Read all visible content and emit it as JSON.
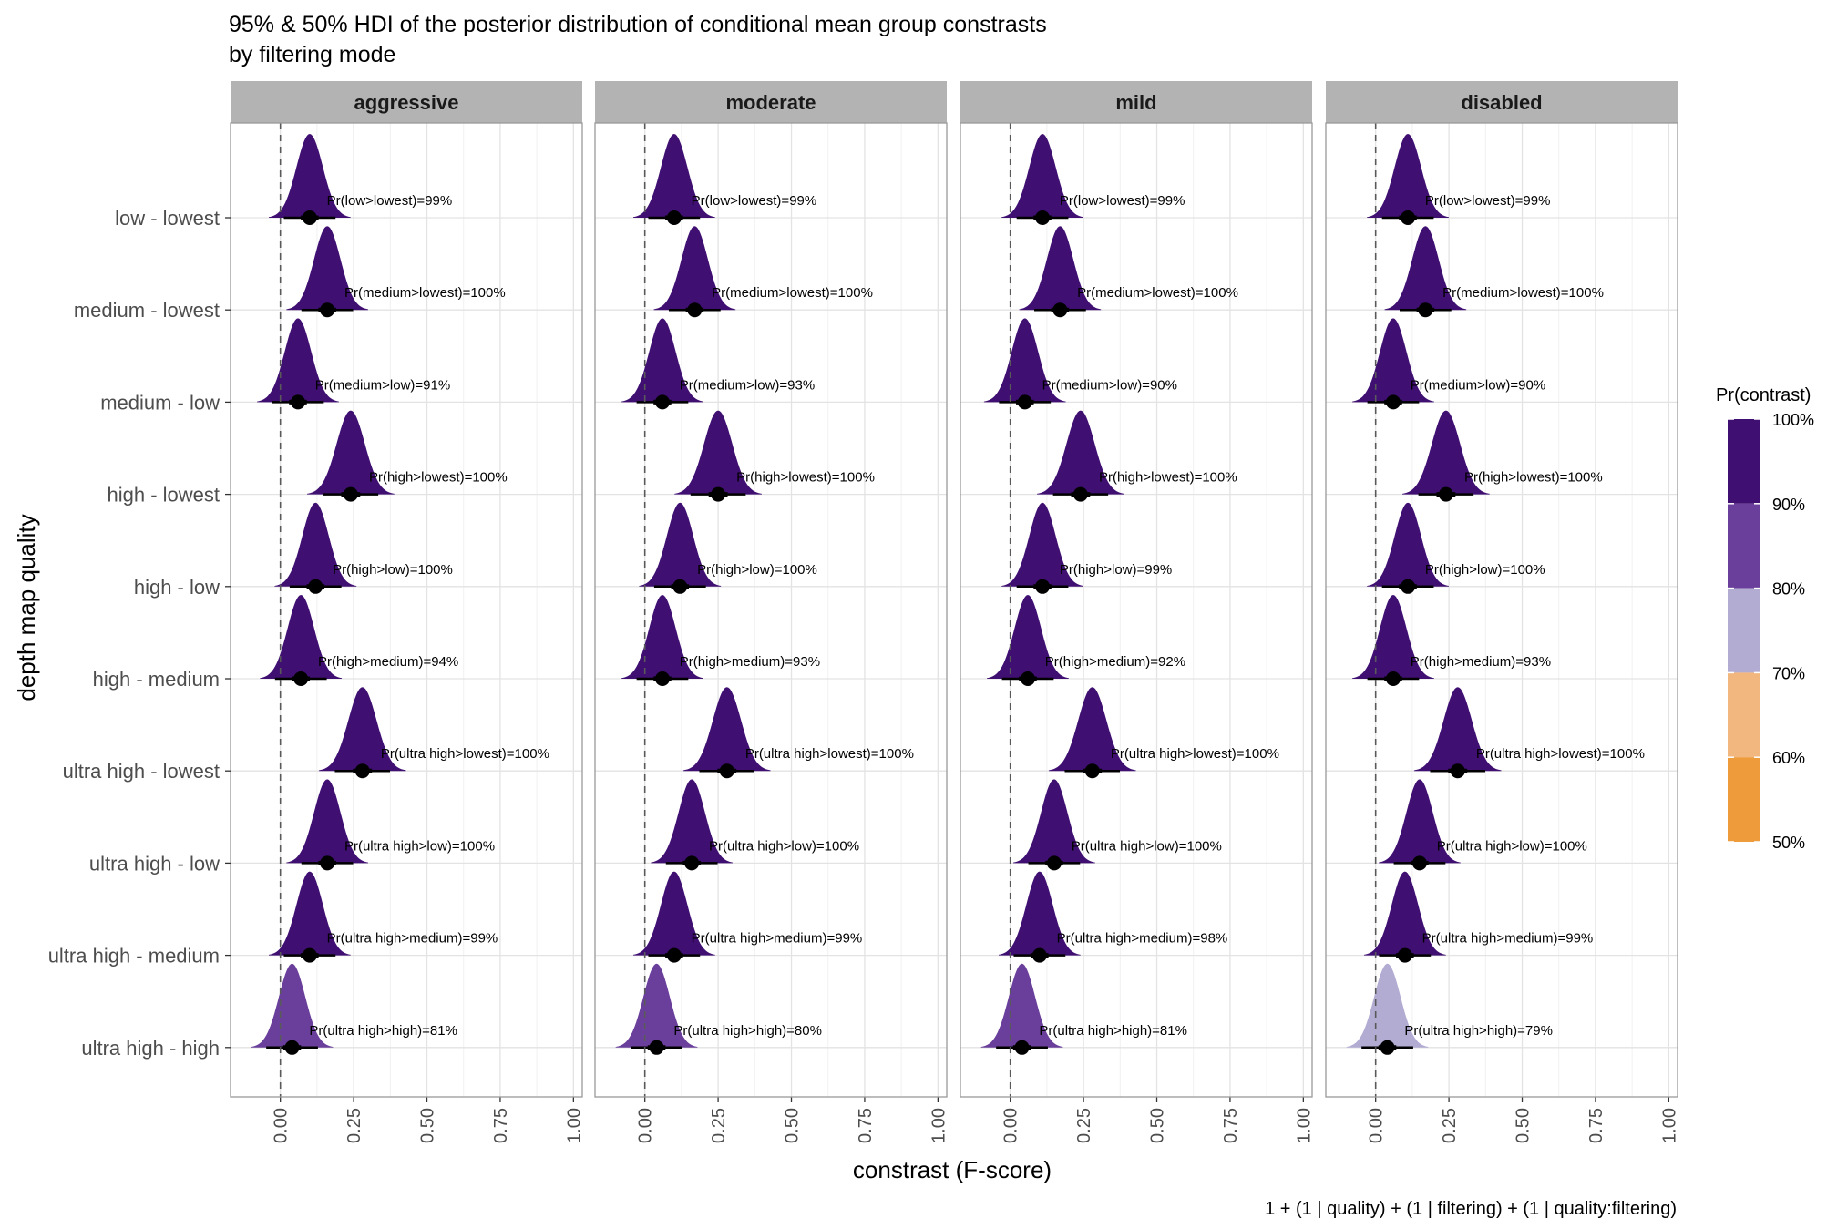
{
  "chart_data": {
    "type": "ridgeline",
    "title": "95% & 50% HDI of the posterior distribution of conditional mean group constrasts",
    "subtitle": "by filtering mode",
    "xlabel": "constrast (F-score)",
    "ylabel": "depth map quality",
    "caption": "1 + (1 | quality) + (1 | filtering) + (1 | quality:filtering)",
    "xlim": [
      -0.17,
      1.03
    ],
    "x_ticks": [
      0,
      0.25,
      0.5,
      0.75,
      1
    ],
    "x_tick_labels": [
      "0.00",
      "0.25",
      "0.50",
      "0.75",
      "1.00"
    ],
    "reference_line": 0,
    "grid": true,
    "legend": {
      "title": "Pr(contrast)",
      "position": "right",
      "labels": [
        "100%",
        "90%",
        "80%",
        "70%",
        "60%",
        "50%"
      ],
      "bins": [
        {
          "from": 0.9,
          "to": 1.0,
          "color": "#3f0f72"
        },
        {
          "from": 0.8,
          "to": 0.9,
          "color": "#6a3f9b"
        },
        {
          "from": 0.7,
          "to": 0.8,
          "color": "#b2abd2"
        },
        {
          "from": 0.6,
          "to": 0.7,
          "color": "#f2b77f"
        },
        {
          "from": 0.5,
          "to": 0.6,
          "color": "#ee9b3c"
        }
      ]
    },
    "categories": [
      "low - lowest",
      "medium - lowest",
      "medium - low",
      "high - lowest",
      "high - low",
      "high - medium",
      "ultra high - lowest",
      "ultra high - low",
      "ultra high - medium",
      "ultra high - high"
    ],
    "panels": [
      {
        "name": "aggressive",
        "medians": [
          0.1,
          0.16,
          0.06,
          0.24,
          0.12,
          0.07,
          0.28,
          0.16,
          0.1,
          0.04
        ],
        "sds": [
          0.045,
          0.045,
          0.045,
          0.048,
          0.045,
          0.045,
          0.048,
          0.045,
          0.045,
          0.045
        ],
        "probs": [
          0.99,
          1.0,
          0.91,
          1.0,
          1.0,
          0.94,
          1.0,
          1.0,
          0.99,
          0.81
        ],
        "labels": [
          "Pr(low>lowest)=99%",
          "Pr(medium>lowest)=100%",
          "Pr(medium>low)=91%",
          "Pr(high>lowest)=100%",
          "Pr(high>low)=100%",
          "Pr(high>medium)=94%",
          "Pr(ultra high>lowest)=100%",
          "Pr(ultra high>low)=100%",
          "Pr(ultra high>medium)=99%",
          "Pr(ultra high>high)=81%"
        ]
      },
      {
        "name": "moderate",
        "medians": [
          0.1,
          0.17,
          0.06,
          0.25,
          0.12,
          0.06,
          0.28,
          0.16,
          0.1,
          0.04
        ],
        "sds": [
          0.045,
          0.045,
          0.045,
          0.048,
          0.045,
          0.045,
          0.048,
          0.045,
          0.045,
          0.045
        ],
        "probs": [
          0.99,
          1.0,
          0.93,
          1.0,
          1.0,
          0.93,
          1.0,
          1.0,
          0.99,
          0.8
        ],
        "labels": [
          "Pr(low>lowest)=99%",
          "Pr(medium>lowest)=100%",
          "Pr(medium>low)=93%",
          "Pr(high>lowest)=100%",
          "Pr(high>low)=100%",
          "Pr(high>medium)=93%",
          "Pr(ultra high>lowest)=100%",
          "Pr(ultra high>low)=100%",
          "Pr(ultra high>medium)=99%",
          "Pr(ultra high>high)=80%"
        ]
      },
      {
        "name": "mild",
        "medians": [
          0.11,
          0.17,
          0.05,
          0.24,
          0.11,
          0.06,
          0.28,
          0.15,
          0.1,
          0.04
        ],
        "sds": [
          0.045,
          0.045,
          0.045,
          0.048,
          0.045,
          0.045,
          0.048,
          0.045,
          0.045,
          0.045
        ],
        "probs": [
          0.99,
          1.0,
          0.9,
          1.0,
          0.99,
          0.92,
          1.0,
          1.0,
          0.98,
          0.81
        ],
        "labels": [
          "Pr(low>lowest)=99%",
          "Pr(medium>lowest)=100%",
          "Pr(medium>low)=90%",
          "Pr(high>lowest)=100%",
          "Pr(high>low)=99%",
          "Pr(high>medium)=92%",
          "Pr(ultra high>lowest)=100%",
          "Pr(ultra high>low)=100%",
          "Pr(ultra high>medium)=98%",
          "Pr(ultra high>high)=81%"
        ]
      },
      {
        "name": "disabled",
        "medians": [
          0.11,
          0.17,
          0.06,
          0.24,
          0.11,
          0.06,
          0.28,
          0.15,
          0.1,
          0.04
        ],
        "sds": [
          0.045,
          0.045,
          0.045,
          0.048,
          0.045,
          0.045,
          0.048,
          0.045,
          0.045,
          0.045
        ],
        "probs": [
          0.99,
          1.0,
          0.9,
          1.0,
          1.0,
          0.93,
          1.0,
          1.0,
          0.99,
          0.79
        ],
        "labels": [
          "Pr(low>lowest)=99%",
          "Pr(medium>lowest)=100%",
          "Pr(medium>low)=90%",
          "Pr(high>lowest)=100%",
          "Pr(high>low)=100%",
          "Pr(high>medium)=93%",
          "Pr(ultra high>lowest)=100%",
          "Pr(ultra high>low)=100%",
          "Pr(ultra high>medium)=99%",
          "Pr(ultra high>high)=79%"
        ]
      }
    ]
  }
}
